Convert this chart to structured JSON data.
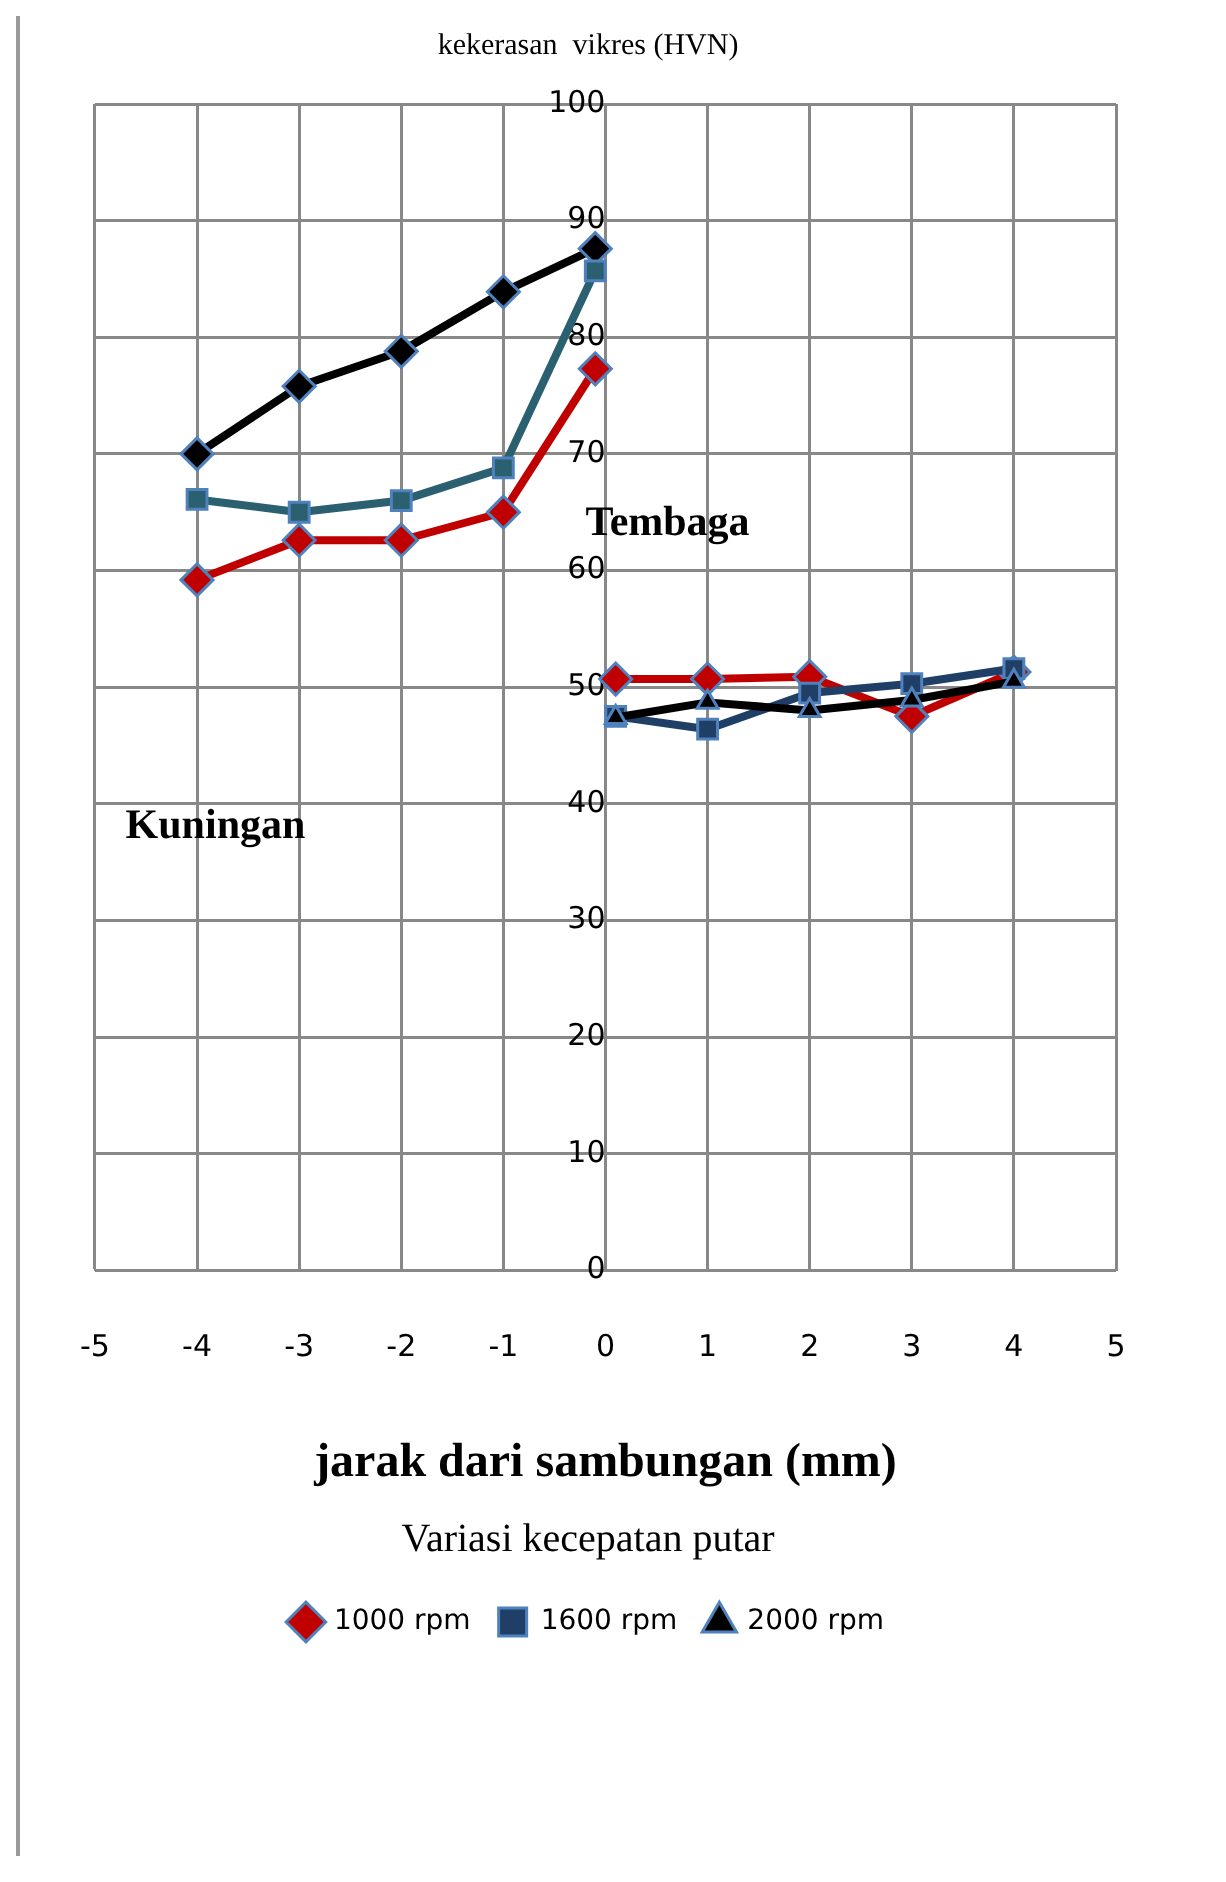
{
  "chart_data": {
    "type": "line",
    "ylabel": "kekerasan  vikres (HVN)",
    "xlabel": "jarak dari sambungan (mm)",
    "legend_title": "Variasi kecepatan putar",
    "legend": "bottom",
    "grid": true,
    "xlim": [
      -5,
      5
    ],
    "xticks": [
      -5,
      -4,
      -3,
      -2,
      -1,
      0,
      1,
      2,
      3,
      4,
      5
    ],
    "ylim": [
      0,
      100
    ],
    "yticks": [
      0,
      10,
      20,
      30,
      40,
      50,
      60,
      70,
      80,
      90,
      100
    ],
    "annotations": [
      "Tembaga",
      "Kuningan"
    ],
    "series": [
      {
        "name": "1000 rpm",
        "color": "#c00000",
        "marker": "diamond",
        "x": [
          0.1,
          1,
          2,
          3,
          4
        ],
        "values": [
          50.7,
          50.7,
          50.9,
          47.5,
          51.3
        ]
      },
      {
        "name": "1600 rpm",
        "color": "#1f3f66",
        "marker": "square",
        "x": [
          0.1,
          1,
          2,
          3,
          4
        ],
        "values": [
          47.5,
          46.4,
          49.5,
          50.3,
          51.6
        ]
      },
      {
        "name": "2000 rpm",
        "color": "#000000",
        "marker": "triangle",
        "x": [
          0.1,
          1,
          2,
          3,
          4
        ],
        "values": [
          47.4,
          48.7,
          48.0,
          48.9,
          50.5
        ]
      },
      {
        "color": "#000000",
        "marker": "diamond",
        "x": [
          -4,
          -3,
          -2,
          -1,
          -0.1
        ],
        "values": [
          70.0,
          75.8,
          78.8,
          83.9,
          87.6
        ]
      },
      {
        "color": "#2a6070",
        "marker": "square",
        "x": [
          -4,
          -3,
          -2,
          -1,
          -0.1
        ],
        "values": [
          66.1,
          65.0,
          66.0,
          68.8,
          85.7
        ]
      },
      {
        "color": "#c00000",
        "marker": "diamond",
        "x": [
          -4,
          -3,
          -2,
          -1,
          -0.1
        ],
        "values": [
          59.2,
          62.6,
          62.6,
          65.0,
          77.3
        ]
      }
    ]
  }
}
